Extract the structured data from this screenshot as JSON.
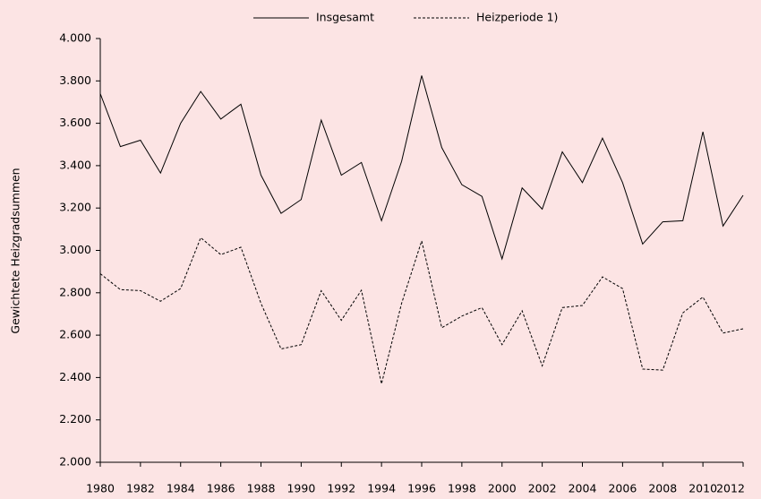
{
  "chart_data": {
    "type": "line",
    "y_label": "Gewichtete Heizgradsummen",
    "x": [
      1980,
      1981,
      1982,
      1983,
      1984,
      1985,
      1986,
      1987,
      1988,
      1989,
      1990,
      1991,
      1992,
      1993,
      1994,
      1995,
      1996,
      1997,
      1998,
      1999,
      2000,
      2001,
      2002,
      2003,
      2004,
      2005,
      2006,
      2007,
      2008,
      2009,
      2010,
      2011,
      2012
    ],
    "series": [
      {
        "name": "Insgesamt",
        "color": "#000000",
        "dash": "solid",
        "values": [
          3740,
          3490,
          3520,
          3365,
          3600,
          3750,
          3620,
          3690,
          3355,
          3175,
          3240,
          3615,
          3355,
          3415,
          3140,
          3420,
          3825,
          3485,
          3310,
          3255,
          2960,
          3295,
          3195,
          3465,
          3320,
          3530,
          3320,
          3030,
          3135,
          3140,
          3560,
          3115,
          3260
        ]
      },
      {
        "name": "Heizperiode 1)",
        "color": "#000000",
        "dash": "dashed",
        "values": [
          2890,
          2815,
          2810,
          2760,
          2820,
          3060,
          2980,
          3015,
          2750,
          2535,
          2555,
          2810,
          2670,
          2812,
          2370,
          2750,
          3045,
          2635,
          2690,
          2730,
          2555,
          2715,
          2455,
          2730,
          2740,
          2875,
          2820,
          2440,
          2435,
          2705,
          2780,
          2610,
          2630
        ]
      }
    ],
    "xlim": [
      1980,
      2012
    ],
    "xticks": [
      1980,
      1982,
      1984,
      1986,
      1988,
      1990,
      1992,
      1994,
      1996,
      1998,
      2000,
      2002,
      2004,
      2006,
      2008,
      2010,
      2012
    ],
    "ylim": [
      2000,
      4000
    ],
    "yticks": [
      {
        "value": 2000,
        "label": "2.000"
      },
      {
        "value": 2200,
        "label": "2.200"
      },
      {
        "value": 2400,
        "label": "2.400"
      },
      {
        "value": 2600,
        "label": "2.600"
      },
      {
        "value": 2800,
        "label": "2.800"
      },
      {
        "value": 3000,
        "label": "3.000"
      },
      {
        "value": 3200,
        "label": "3.200"
      },
      {
        "value": 3400,
        "label": "3.400"
      },
      {
        "value": 3600,
        "label": "3.600"
      },
      {
        "value": 3800,
        "label": "3.800"
      },
      {
        "value": 4000,
        "label": "4.000"
      }
    ],
    "legend": "top"
  }
}
